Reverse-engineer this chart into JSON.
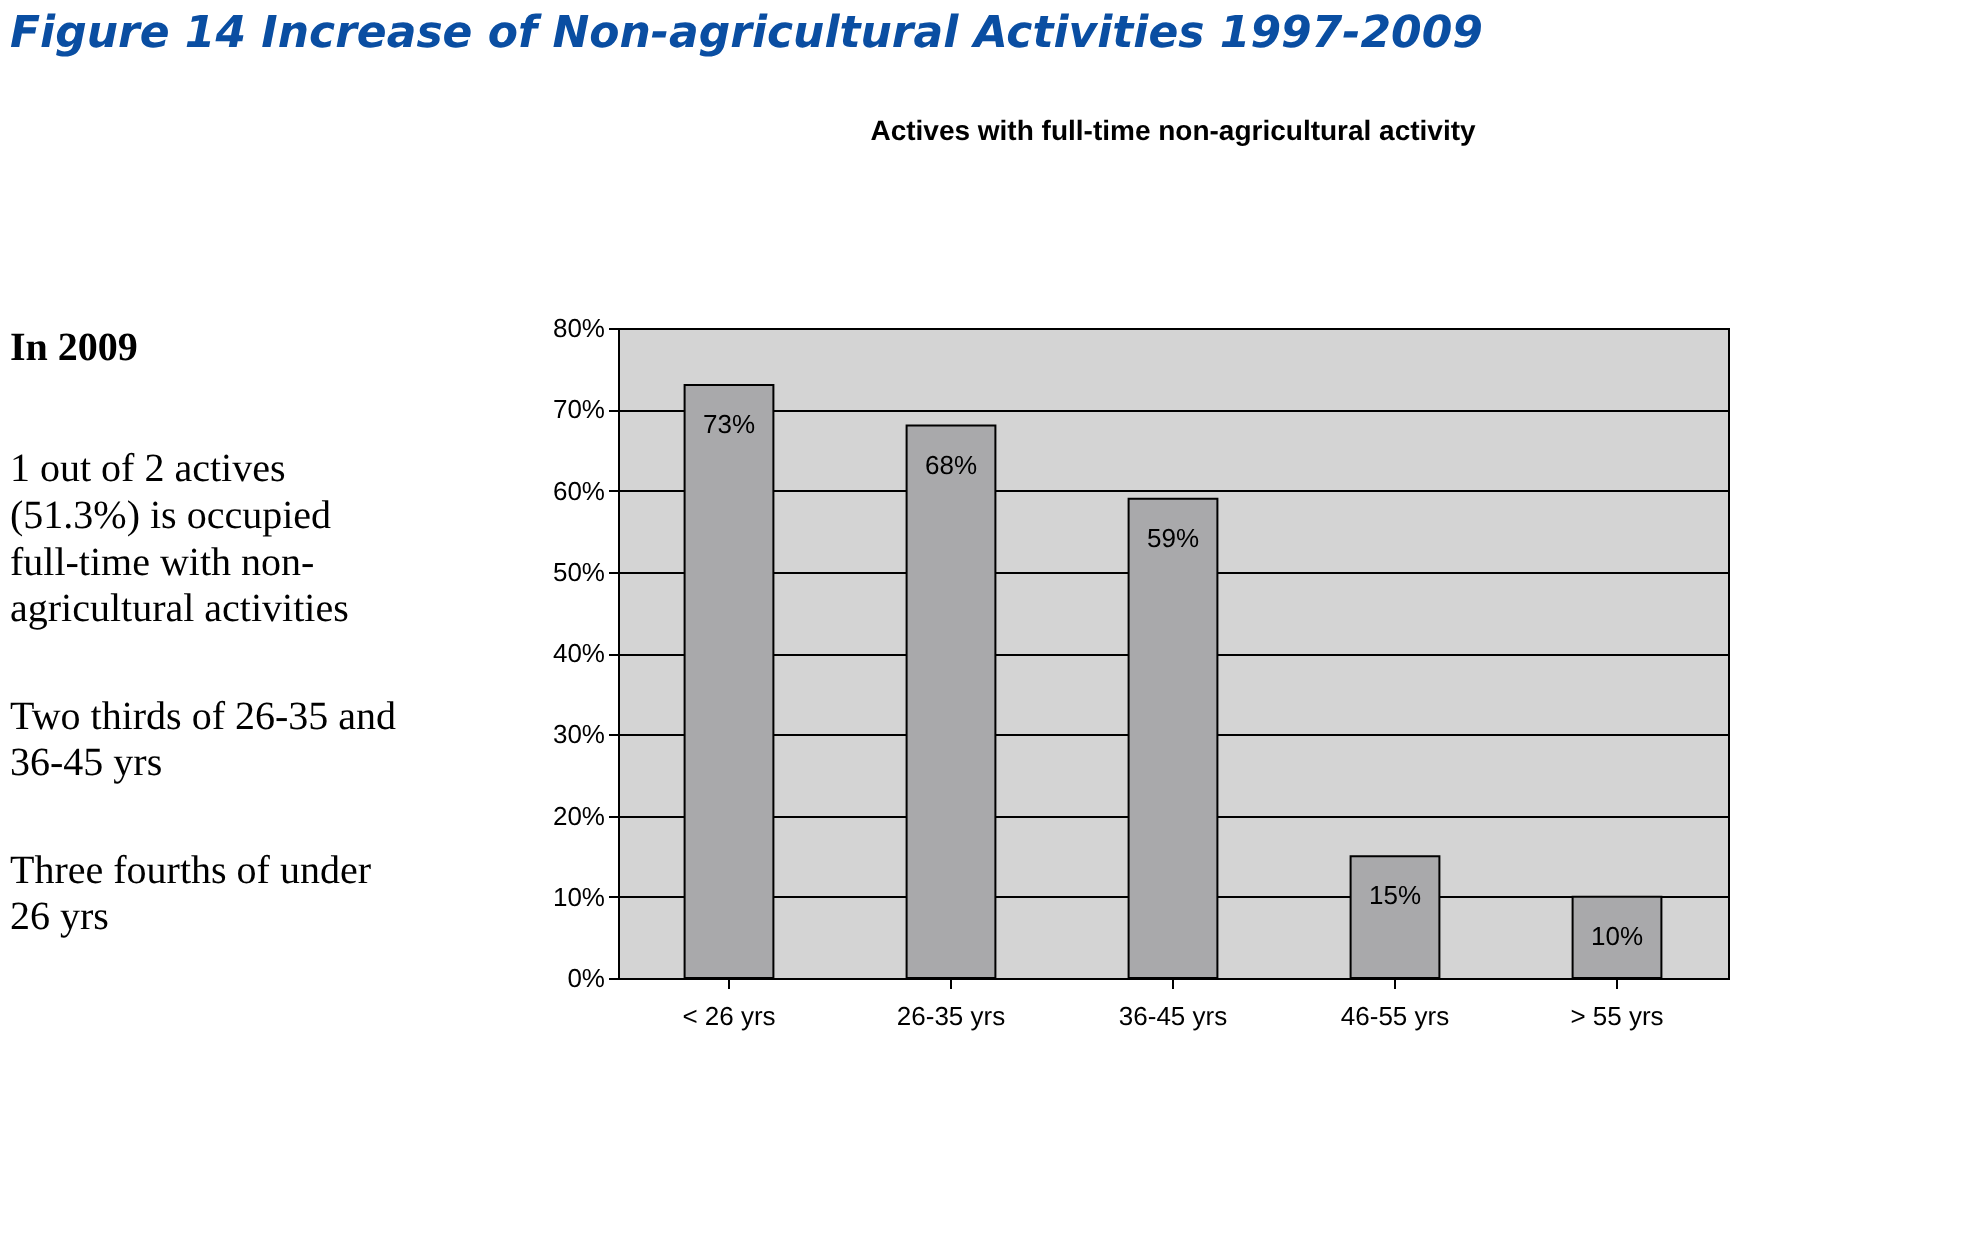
{
  "chart_data": {
    "type": "bar",
    "title": "Figure 14 Increase of Non-agricultural Activities 1997-2009",
    "subtitle": "Actives with full-time non-agricultural activity",
    "annotations": [
      "In 2009",
      "1 out of 2 actives (51.3%) is occupied full-time with non-agricultural activities",
      "Two thirds of 26-35 and 36-45 yrs",
      "Three fourths of under 26 yrs"
    ],
    "categories": [
      "< 26 yrs",
      "26-35 yrs",
      "36-45 yrs",
      "46-55 yrs",
      "> 55 yrs"
    ],
    "values": [
      73,
      68,
      59,
      15,
      10
    ],
    "color": "#a9a9ab",
    "value_labels": [
      "73%",
      "68%",
      "59%",
      "15%",
      "10%"
    ],
    "ylim": [
      0,
      80
    ],
    "yticks": [
      {
        "value": 0,
        "label": "0%"
      },
      {
        "value": 10,
        "label": "10%"
      },
      {
        "value": 20,
        "label": "20%"
      },
      {
        "value": 30,
        "label": "30%"
      },
      {
        "value": 40,
        "label": "40%"
      },
      {
        "value": 50,
        "label": "50%"
      },
      {
        "value": 60,
        "label": "60%"
      },
      {
        "value": 70,
        "label": "70%"
      },
      {
        "value": 80,
        "label": "80%"
      }
    ],
    "grid": "y"
  }
}
